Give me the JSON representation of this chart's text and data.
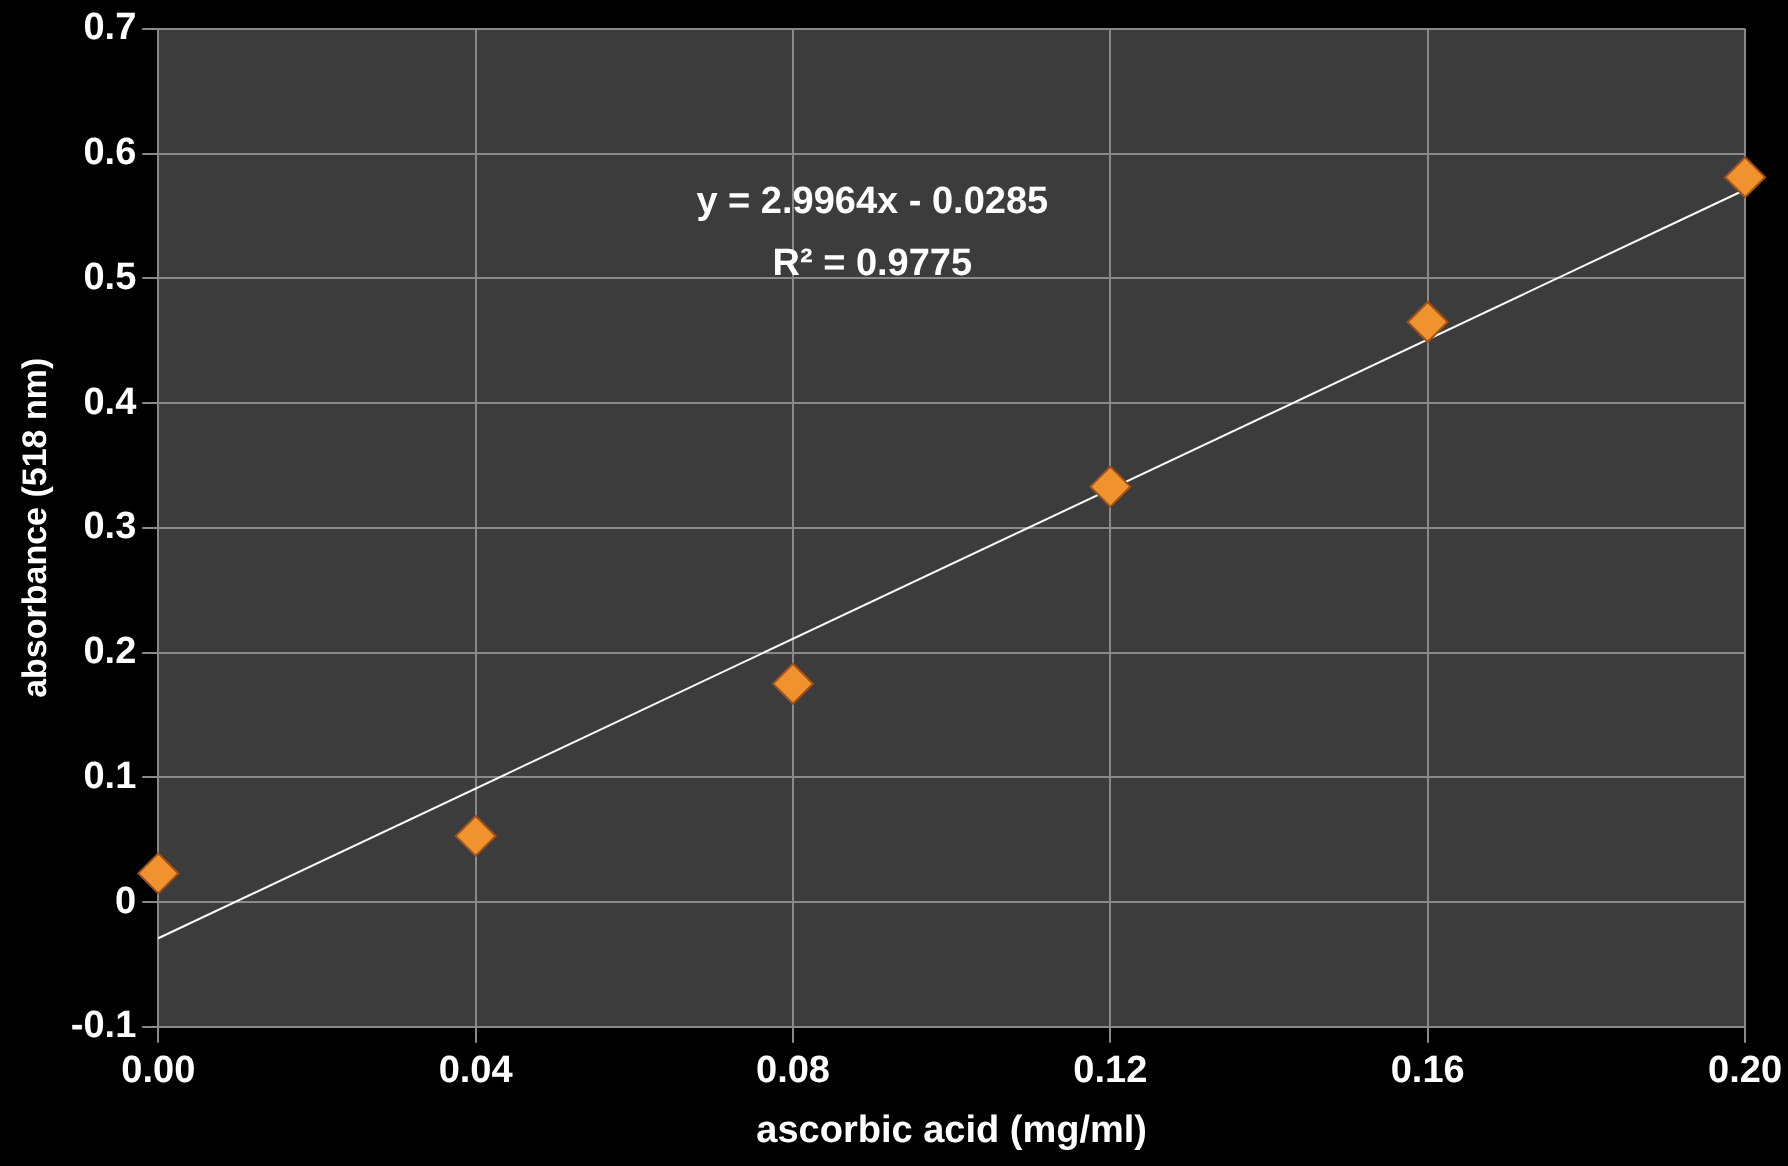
{
  "chart_data": {
    "type": "scatter",
    "xlabel": "ascorbic acid (mg/ml)",
    "ylabel": "absorbance (518 nm)",
    "series": [
      {
        "color": "#f0922e",
        "x": [
          0,
          0.04,
          0.08,
          0.12,
          0.16,
          0.2
        ],
        "values": [
          0.023,
          0.053,
          0.175,
          0.333,
          0.465,
          0.581
        ],
        "marker": "diamond"
      },
      {
        "type": "line",
        "color": "#ffffff",
        "x": [
          0,
          0.2
        ],
        "values": [
          -0.029,
          0.571
        ]
      }
    ],
    "xlim": [
      0,
      0.2
    ],
    "xticks": [
      {
        "value": 0,
        "label": "0.00"
      },
      {
        "value": 0.04,
        "label": "0.04"
      },
      {
        "value": 0.08,
        "label": "0.08"
      },
      {
        "value": 0.12,
        "label": "0.12"
      },
      {
        "value": 0.16,
        "label": "0.16"
      },
      {
        "value": 0.2,
        "label": "0.20"
      }
    ],
    "ylim": [
      -0.1,
      0.7
    ],
    "yticks": [
      -0.1,
      0,
      0.1,
      0.2,
      0.3,
      0.4,
      0.5,
      0.6,
      0.7
    ],
    "annotations": [
      "y = 2.9964x - 0.0285",
      "R² = 0.9775"
    ],
    "grid": true,
    "legend": false
  }
}
